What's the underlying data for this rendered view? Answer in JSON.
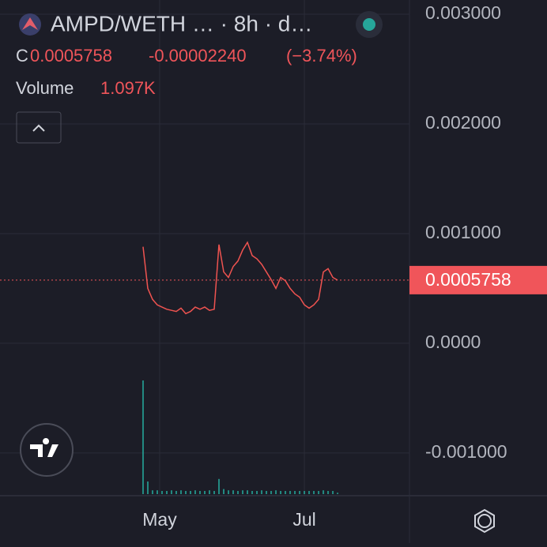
{
  "header": {
    "pair": "AMPD/WETH … · 8h · d…",
    "close_label": "C",
    "close": "0.0005758",
    "change": "-0.00002240",
    "change_pct": "(−3.74%)",
    "volume_label": "Volume",
    "volume": "1.097K"
  },
  "chart_data": {
    "type": "line",
    "x": [
      114,
      116,
      118,
      120,
      122,
      124,
      126,
      128,
      130,
      132,
      134,
      136,
      138,
      140,
      142,
      144,
      146,
      148,
      150,
      152,
      154,
      156,
      158,
      160,
      162,
      164,
      166,
      168,
      170,
      172,
      174,
      176,
      178,
      180,
      182,
      184,
      186,
      188,
      190,
      192,
      194,
      196
    ],
    "series": [
      {
        "name": "price",
        "color": "#ef5350",
        "values": [
          0.00088,
          0.0005,
          0.0004,
          0.00035,
          0.00033,
          0.00031,
          0.0003,
          0.00029,
          0.00032,
          0.00027,
          0.00029,
          0.00033,
          0.00031,
          0.00033,
          0.0003,
          0.00031,
          0.0009,
          0.00065,
          0.0006,
          0.0007,
          0.00075,
          0.00085,
          0.00092,
          0.0008,
          0.00077,
          0.00072,
          0.00065,
          0.00058,
          0.0005,
          0.0006,
          0.00057,
          0.0005,
          0.00045,
          0.00042,
          0.00035,
          0.00032,
          0.00035,
          0.0004,
          0.00065,
          0.00068,
          0.0006,
          0.0005758
        ]
      },
      {
        "name": "volume",
        "color": "#26a69a",
        "values": [
          90000,
          10000,
          3000,
          3000,
          2500,
          2500,
          3000,
          2500,
          3000,
          2500,
          2500,
          3000,
          2500,
          2500,
          3000,
          2500,
          12000,
          4000,
          3000,
          3000,
          2500,
          3000,
          3000,
          2500,
          2500,
          3000,
          2500,
          2500,
          3000,
          2500,
          2500,
          2500,
          2500,
          2500,
          2500,
          2500,
          2500,
          2500,
          3000,
          2500,
          2500,
          1097
        ]
      }
    ],
    "volume_lim": [
      0,
      100000
    ],
    "xlim": [
      53.7,
      226.3
    ],
    "xticks": [
      {
        "value": 121,
        "label": "May"
      },
      {
        "value": 182,
        "label": "Jul"
      }
    ],
    "ylim": [
      -0.00139,
      0.00313
    ],
    "yticks": [
      {
        "value": 0.003,
        "label": "0.003000"
      },
      {
        "value": 0.002,
        "label": "0.002000"
      },
      {
        "value": 0.001,
        "label": "0.001000"
      },
      {
        "value": 0,
        "label": "0.0000"
      },
      {
        "value": -0.001,
        "label": "-0.001000"
      }
    ],
    "last_price": {
      "value": 0.0005758,
      "label": "0.0005758",
      "color": "#f0555a"
    },
    "grid": true
  }
}
